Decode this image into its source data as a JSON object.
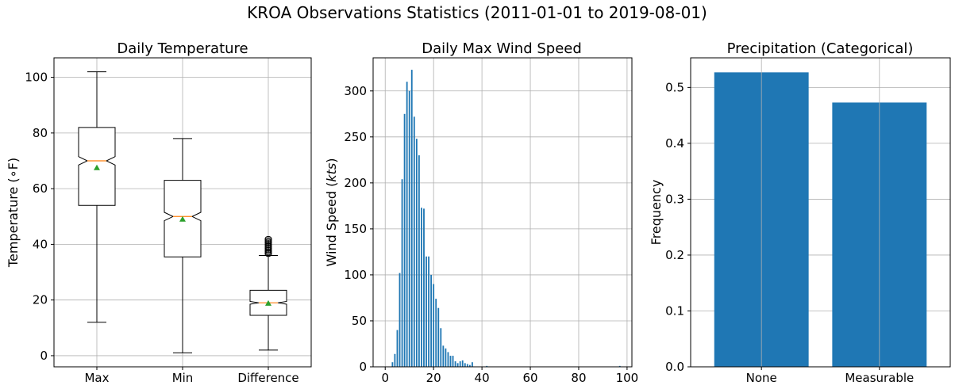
{
  "suptitle": "KROA Observations Statistics (2011-01-01 to 2019-08-01)",
  "colors": {
    "bar": "#1f77b4",
    "median": "#ff7f0e",
    "mean_marker": "#2ca02c",
    "grid": "#b0b0b0"
  },
  "chart_data": [
    {
      "type": "boxplot",
      "title": "Daily Temperature",
      "xlabel": "",
      "ylabel": "Temperature (∘F)",
      "ylim": [
        -4,
        107
      ],
      "yticks": [
        0,
        20,
        40,
        60,
        80,
        100
      ],
      "notched": true,
      "grid": true,
      "boxes": [
        {
          "label": "Max",
          "whisker_low": 12,
          "q1": 54,
          "median": 70,
          "q3": 82,
          "whisker_high": 102,
          "mean": 67.5,
          "notch_low": 68.5,
          "notch_high": 71.5,
          "outliers": []
        },
        {
          "label": "Min",
          "whisker_low": 1,
          "q1": 35.5,
          "median": 50,
          "q3": 63,
          "whisker_high": 78,
          "mean": 49,
          "notch_low": 48.5,
          "notch_high": 51.5,
          "outliers": []
        },
        {
          "label": "Difference",
          "whisker_low": 2,
          "q1": 14.5,
          "median": 19,
          "q3": 23.5,
          "whisker_high": 36,
          "mean": 18.8,
          "notch_low": 18.5,
          "notch_high": 19.5,
          "outliers": [
            36.5,
            37,
            37.5,
            38,
            38.5,
            39,
            39.5,
            40,
            40.5,
            41,
            41.5,
            42
          ]
        }
      ]
    },
    {
      "type": "bar",
      "title": "Daily Max Wind Speed",
      "xlabel": "",
      "ylabel": "Wind Speed (kts)",
      "xlim": [
        -5,
        102
      ],
      "ylim": [
        0,
        336
      ],
      "xticks": [
        0,
        20,
        40,
        60,
        80,
        100
      ],
      "yticks": [
        0,
        50,
        100,
        150,
        200,
        250,
        300
      ],
      "grid": true,
      "x": [
        3,
        4,
        5,
        6,
        7,
        8,
        9,
        10,
        11,
        12,
        13,
        14,
        15,
        16,
        17,
        18,
        19,
        20,
        21,
        22,
        23,
        24,
        25,
        26,
        27,
        28,
        29,
        30,
        31,
        32,
        33,
        34,
        35,
        36,
        42,
        97
      ],
      "values": [
        5,
        14,
        40,
        102,
        204,
        275,
        310,
        300,
        323,
        272,
        248,
        230,
        173,
        172,
        120,
        120,
        100,
        90,
        74,
        64,
        42,
        23,
        20,
        16,
        12,
        12,
        6,
        4,
        6,
        7,
        4,
        3,
        2,
        5,
        1,
        1
      ]
    },
    {
      "type": "bar",
      "title": "Precipitation (Categorical)",
      "xlabel": "",
      "ylabel": "Frequency",
      "ylim": [
        0,
        0.553
      ],
      "yticks": [
        0.0,
        0.1,
        0.2,
        0.3,
        0.4,
        0.5
      ],
      "grid": true,
      "categories": [
        "None",
        "Measurable"
      ],
      "values": [
        0.527,
        0.473
      ]
    }
  ]
}
